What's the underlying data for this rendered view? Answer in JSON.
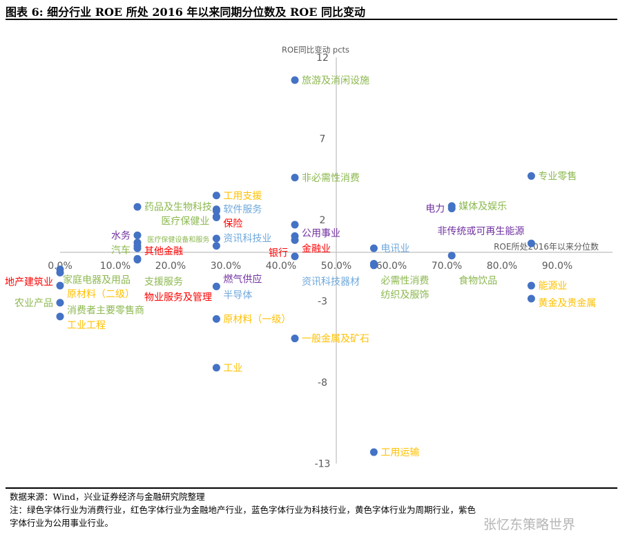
{
  "header": {
    "title": "图表 6:  细分行业 ROE 所处 2016 年以来同期分位数及 ROE 同比变动"
  },
  "footer": {
    "source": "数据来源：Wind，兴业证券经济与金融研究院整理",
    "note1": "注：绿色字体行业为消费行业，红色字体行业为金融地产行业，蓝色字体行业为科技行业，黄色字体行业为周期行业，紫色",
    "note2": "字体行业为公用事业行业。",
    "watermark": "张忆东策略世界"
  },
  "colors": {
    "dot": "#4472c4",
    "consumer": "#8cb84f",
    "finance": "#ff0000",
    "tech": "#6fa8dc",
    "cyclical": "#ffc000",
    "utility": "#7030a0",
    "axis": "#bfbfbf",
    "tick": "#595959"
  },
  "chart_data": {
    "type": "scatter",
    "xlabel": "ROE所处2016年以来分位数",
    "ylabel": "ROE同比变动 pcts",
    "xlim": [
      0,
      100
    ],
    "ylim": [
      -13,
      12
    ],
    "xticks": [
      "0.0%",
      "10.0%",
      "20.0%",
      "30.0%",
      "40.0%",
      "50.0%",
      "60.0%",
      "70.0%",
      "80.0%",
      "90.0%"
    ],
    "xtick_values": [
      0,
      10,
      20,
      30,
      40,
      50,
      60,
      70,
      80,
      90
    ],
    "yticks": [
      "12",
      "7",
      "2",
      "-3",
      "-8",
      "-13"
    ],
    "ytick_values": [
      12,
      7,
      2,
      -3,
      -8,
      -13
    ],
    "axis_cross": {
      "x": 50,
      "y": 0
    },
    "points": [
      {
        "name": "旅游及消闲设施",
        "x": 42.5,
        "y": 10.6,
        "group": "consumer"
      },
      {
        "name": "非必需性消费",
        "x": 42.5,
        "y": 4.6,
        "group": "consumer"
      },
      {
        "name": "专业零售",
        "x": 85.3,
        "y": 4.7,
        "group": "consumer"
      },
      {
        "name": "媒体及娱乐",
        "x": 70.9,
        "y": 2.85,
        "group": "consumer"
      },
      {
        "name": "电力",
        "x": 70.9,
        "y": 2.7,
        "group": "utility"
      },
      {
        "name": "工用支援",
        "x": 28.3,
        "y": 3.5,
        "group": "cyclical"
      },
      {
        "name": "药品及生物科技",
        "x": 14.0,
        "y": 2.8,
        "group": "consumer"
      },
      {
        "name": "软件服务",
        "x": 28.3,
        "y": 2.65,
        "group": "tech"
      },
      {
        "name": "保险",
        "x": 28.3,
        "y": 2.55,
        "group": "finance"
      },
      {
        "name": "医疗保健业",
        "x": 28.3,
        "y": 2.2,
        "group": "consumer"
      },
      {
        "name": "资讯科技业",
        "x": 28.3,
        "y": 2.15,
        "group": "tech"
      },
      {
        "name": "医疗保健设备和服务",
        "x": 28.3,
        "y": 0.85,
        "group": "consumer"
      },
      {
        "name": "燃气供应",
        "x": 28.3,
        "y": 0.4,
        "group": "utility"
      },
      {
        "name": "半导体",
        "x": 28.3,
        "y": -2.1,
        "group": "tech"
      },
      {
        "name": "原材料（一级）",
        "x": 28.3,
        "y": -4.1,
        "group": "cyclical"
      },
      {
        "name": "工业",
        "x": 28.3,
        "y": -7.1,
        "group": "cyclical"
      },
      {
        "name": "公用事业",
        "x": 42.5,
        "y": 1.7,
        "group": "utility"
      },
      {
        "name": "金融业",
        "x": 42.5,
        "y": 1.0,
        "group": "finance"
      },
      {
        "name": "银行",
        "x": 42.5,
        "y": 0.75,
        "group": "finance"
      },
      {
        "name": "资讯科技器材",
        "x": 42.5,
        "y": -0.25,
        "group": "tech"
      },
      {
        "name": "一般金属及矿石",
        "x": 42.5,
        "y": -5.3,
        "group": "cyclical"
      },
      {
        "name": "工用运输",
        "x": 56.8,
        "y": -12.3,
        "group": "cyclical"
      },
      {
        "name": "电讯业",
        "x": 56.8,
        "y": 0.25,
        "group": "tech"
      },
      {
        "name": "必需性消费",
        "x": 56.8,
        "y": -0.7,
        "group": "consumer"
      },
      {
        "name": "纺织及服饰",
        "x": 56.8,
        "y": -0.8,
        "group": "consumer"
      },
      {
        "name": "食物饮品",
        "x": 70.9,
        "y": -0.2,
        "group": "consumer"
      },
      {
        "name": "非传统或可再生能源",
        "x": 85.3,
        "y": 0.55,
        "group": "utility"
      },
      {
        "name": "能源业",
        "x": 85.3,
        "y": -2.05,
        "group": "cyclical"
      },
      {
        "name": "黄金及贵金属",
        "x": 85.3,
        "y": -2.85,
        "group": "cyclical"
      },
      {
        "name": "水务",
        "x": 14.0,
        "y": 1.05,
        "group": "utility"
      },
      {
        "name": "其他金融",
        "x": 14.0,
        "y": 0.6,
        "group": "finance"
      },
      {
        "name": "汽车",
        "x": 14.0,
        "y": 0.4,
        "group": "consumer"
      },
      {
        "name": "支援服务",
        "x": 14.0,
        "y": 0.25,
        "group": "consumer"
      },
      {
        "name": "家庭电器及用品",
        "x": 14.0,
        "y": -0.4,
        "group": "consumer"
      },
      {
        "name": "物业服务及管理",
        "x": 14.0,
        "y": -0.45,
        "group": "finance"
      },
      {
        "name": "地产建筑业",
        "x": 0.0,
        "y": -1.05,
        "group": "finance"
      },
      {
        "name": "消费者主要零售商",
        "x": 0.0,
        "y": -1.25,
        "group": "consumer"
      },
      {
        "name": "原材料（二级）",
        "x": 0.0,
        "y": -2.05,
        "group": "cyclical"
      },
      {
        "name": "农业产品",
        "x": 0.0,
        "y": -3.1,
        "group": "consumer"
      },
      {
        "name": "工业工程",
        "x": 0.0,
        "y": -3.95,
        "group": "cyclical"
      }
    ]
  }
}
